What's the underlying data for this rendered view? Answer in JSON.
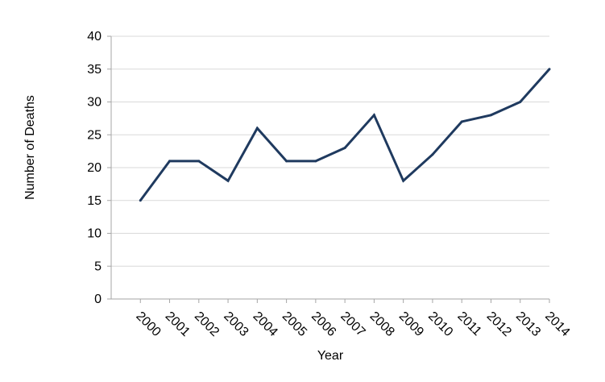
{
  "chart_data": {
    "type": "line",
    "title": "",
    "xlabel": "Year",
    "ylabel": "Number of Deaths",
    "categories": [
      "2000",
      "2001",
      "2002",
      "2003",
      "2004",
      "2005",
      "2006",
      "2007",
      "2008",
      "2009",
      "2010",
      "2011",
      "2012",
      "2013",
      "2014"
    ],
    "series": [
      {
        "values": [
          15,
          21,
          21,
          18,
          26,
          21,
          21,
          23,
          28,
          18,
          22,
          27,
          28,
          30,
          35
        ]
      }
    ],
    "ylim": [
      0,
      40
    ],
    "yticks": [
      "0",
      "5",
      "10",
      "15",
      "20",
      "25",
      "30",
      "35",
      "40"
    ],
    "grid": true,
    "legend": "none",
    "colors": {
      "line": "#1F3A5F",
      "grid": "#D9D9D9",
      "axis": "#A6A6A6"
    }
  }
}
